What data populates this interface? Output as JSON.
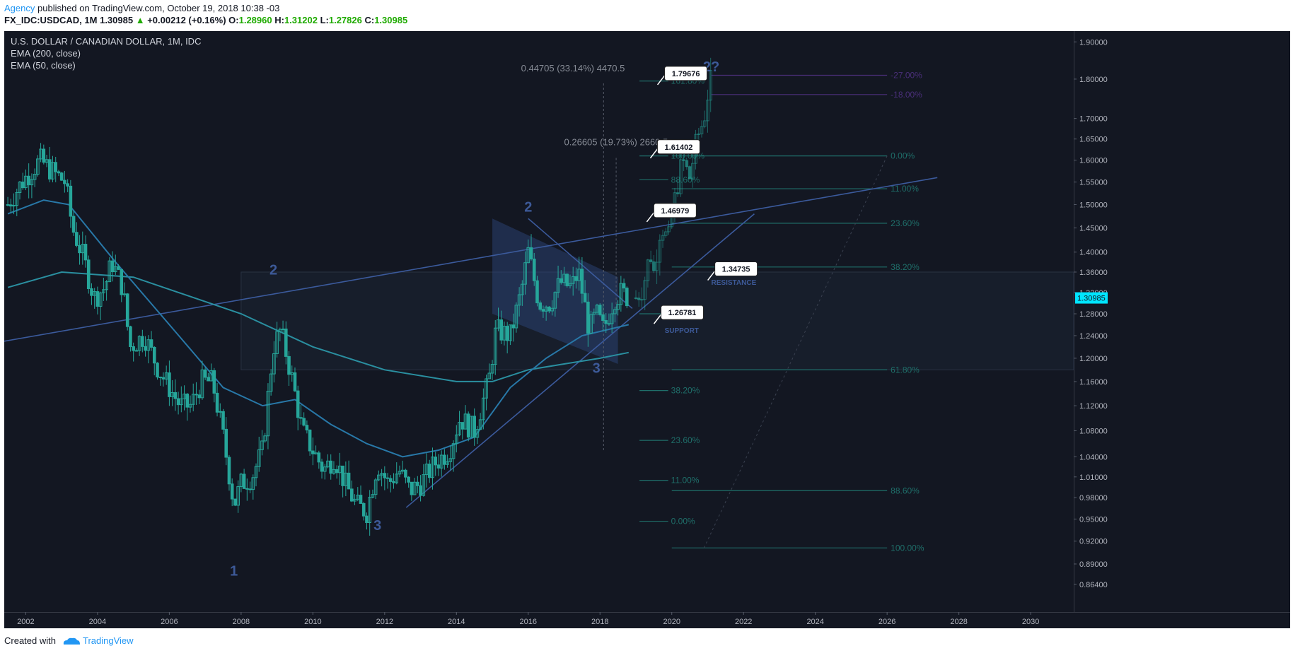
{
  "header": {
    "author": "Agency",
    "published": "published on TradingView.com, October 19, 2018 10:38 -03",
    "symbol": "FX_IDC:USDCAD, 1M",
    "last": "1.30985",
    "change": "+0.00212 (+0.16%)",
    "open_label": "O:",
    "open": "1.28960",
    "high_label": "H:",
    "high": "1.31202",
    "low_label": "L:",
    "low": "1.27826",
    "close_label": "C:",
    "close": "1.30985"
  },
  "legend": {
    "title": "U.S. DOLLAR / CANADIAN DOLLAR, 1M, IDC",
    "ema200": "EMA (200, close)",
    "ema50": "EMA (50, close)"
  },
  "footer": {
    "created": "Created with",
    "brand": "TradingView",
    "logo_icon": "tradingview-cloud-icon"
  },
  "colors": {
    "background": "#131722",
    "candle": "#26a69a",
    "ema": "#2a8fa0",
    "trendline": "#3b5a9c",
    "fib": "#1f6f6a",
    "fib_purple": "#4a2f7a",
    "price_tag": "#00e5ff",
    "annotation": "#3d5a99"
  },
  "chart_data": {
    "type": "candlestick",
    "title": "U.S. DOLLAR / CANADIAN DOLLAR, 1M, IDC",
    "x_axis": {
      "type": "time",
      "range": [
        2001.4,
        2031.2
      ],
      "ticks": [
        "2002",
        "2004",
        "2006",
        "2008",
        "2010",
        "2012",
        "2014",
        "2016",
        "2018",
        "2020",
        "2022",
        "2024",
        "2026",
        "2028",
        "2030"
      ]
    },
    "y_axis": {
      "scale": "log",
      "range": [
        0.83,
        1.93
      ],
      "ticks": [
        "1.90000",
        "1.80000",
        "1.70000",
        "1.65000",
        "1.60000",
        "1.55000",
        "1.50000",
        "1.45000",
        "1.40000",
        "1.36000",
        "1.32000",
        "1.28000",
        "1.24000",
        "1.20000",
        "1.16000",
        "1.12000",
        "1.08000",
        "1.04000",
        "1.01000",
        "0.98000",
        "0.95000",
        "0.92000",
        "0.89000",
        "0.86400"
      ],
      "last_price_tag": "1.30985"
    },
    "price_path": [
      [
        2001.5,
        1.5
      ],
      [
        2001.9,
        1.55
      ],
      [
        2002.1,
        1.57
      ],
      [
        2002.4,
        1.6
      ],
      [
        2002.8,
        1.57
      ],
      [
        2003.1,
        1.55
      ],
      [
        2003.3,
        1.45
      ],
      [
        2003.6,
        1.39
      ],
      [
        2003.9,
        1.31
      ],
      [
        2004.2,
        1.33
      ],
      [
        2004.4,
        1.38
      ],
      [
        2004.7,
        1.33
      ],
      [
        2004.9,
        1.22
      ],
      [
        2005.3,
        1.24
      ],
      [
        2005.7,
        1.18
      ],
      [
        2006.0,
        1.15
      ],
      [
        2006.3,
        1.12
      ],
      [
        2006.6,
        1.12
      ],
      [
        2006.9,
        1.16
      ],
      [
        2007.2,
        1.16
      ],
      [
        2007.5,
        1.07
      ],
      [
        2007.8,
        0.97
      ],
      [
        2008.0,
        1.0
      ],
      [
        2008.3,
        1.01
      ],
      [
        2008.6,
        1.05
      ],
      [
        2008.9,
        1.22
      ],
      [
        2009.1,
        1.25
      ],
      [
        2009.4,
        1.17
      ],
      [
        2009.7,
        1.08
      ],
      [
        2010.0,
        1.05
      ],
      [
        2010.3,
        1.02
      ],
      [
        2010.6,
        1.04
      ],
      [
        2010.9,
        1.0
      ],
      [
        2011.2,
        0.97
      ],
      [
        2011.5,
        0.96
      ],
      [
        2011.8,
        1.03
      ],
      [
        2012.1,
        1.0
      ],
      [
        2012.4,
        1.02
      ],
      [
        2012.7,
        0.99
      ],
      [
        2013.0,
        1.0
      ],
      [
        2013.4,
        1.03
      ],
      [
        2013.8,
        1.05
      ],
      [
        2014.1,
        1.1
      ],
      [
        2014.5,
        1.08
      ],
      [
        2014.9,
        1.16
      ],
      [
        2015.1,
        1.25
      ],
      [
        2015.5,
        1.24
      ],
      [
        2015.8,
        1.32
      ],
      [
        2016.0,
        1.4
      ],
      [
        2016.3,
        1.3
      ],
      [
        2016.6,
        1.3
      ],
      [
        2016.9,
        1.34
      ],
      [
        2017.2,
        1.33
      ],
      [
        2017.4,
        1.36
      ],
      [
        2017.7,
        1.25
      ],
      [
        2017.9,
        1.28
      ],
      [
        2018.1,
        1.25
      ],
      [
        2018.4,
        1.31
      ],
      [
        2018.6,
        1.32
      ],
      [
        2018.8,
        1.30985
      ]
    ],
    "projection_path": [
      [
        2019.0,
        1.31
      ],
      [
        2019.2,
        1.33
      ],
      [
        2019.4,
        1.4
      ],
      [
        2019.5,
        1.36
      ],
      [
        2019.7,
        1.46
      ],
      [
        2019.9,
        1.42
      ],
      [
        2020.1,
        1.52
      ],
      [
        2020.3,
        1.6
      ],
      [
        2020.5,
        1.56
      ],
      [
        2020.7,
        1.65
      ],
      [
        2020.9,
        1.7
      ],
      [
        2021.0,
        1.76
      ],
      [
        2021.1,
        1.8
      ]
    ],
    "ema200": [
      [
        2001.5,
        1.33
      ],
      [
        2003,
        1.36
      ],
      [
        2005,
        1.35
      ],
      [
        2008,
        1.28
      ],
      [
        2010,
        1.22
      ],
      [
        2012,
        1.18
      ],
      [
        2014,
        1.16
      ],
      [
        2015,
        1.16
      ],
      [
        2016,
        1.18
      ],
      [
        2017,
        1.19
      ],
      [
        2018,
        1.2
      ],
      [
        2018.8,
        1.21
      ]
    ],
    "ema50": [
      [
        2001.5,
        1.48
      ],
      [
        2002.5,
        1.51
      ],
      [
        2003.2,
        1.5
      ],
      [
        2004.5,
        1.38
      ],
      [
        2006,
        1.26
      ],
      [
        2007.5,
        1.15
      ],
      [
        2008.6,
        1.12
      ],
      [
        2009.5,
        1.13
      ],
      [
        2010.5,
        1.09
      ],
      [
        2011.5,
        1.06
      ],
      [
        2012.5,
        1.04
      ],
      [
        2013.5,
        1.05
      ],
      [
        2014.5,
        1.07
      ],
      [
        2015.5,
        1.15
      ],
      [
        2016.5,
        1.2
      ],
      [
        2017.5,
        1.24
      ],
      [
        2018.8,
        1.26
      ]
    ],
    "trendlines": [
      {
        "from": [
          2001.4,
          1.23
        ],
        "to": [
          2027.4,
          1.56
        ]
      },
      {
        "from": [
          2012.6,
          0.966
        ],
        "to": [
          2022.3,
          1.48
        ]
      },
      {
        "from": [
          2016.0,
          1.47
        ],
        "to": [
          2018.9,
          1.29
        ]
      }
    ],
    "wave_labels": [
      {
        "text": "1",
        "x": 2007.8,
        "y": 0.875
      },
      {
        "text": "2",
        "x": 2008.9,
        "y": 1.355
      },
      {
        "text": "3",
        "x": 2011.8,
        "y": 0.935
      },
      {
        "text": "2",
        "x": 2016.0,
        "y": 1.485
      },
      {
        "text": "3",
        "x": 2017.9,
        "y": 1.175
      },
      {
        "text": "2?",
        "x": 2021.1,
        "y": 1.82
      }
    ],
    "fib_retracement_upper": [
      {
        "level": "0.00%",
        "y": 1.61
      },
      {
        "level": "11.00%",
        "y": 1.535
      },
      {
        "level": "23.60%",
        "y": 1.46
      },
      {
        "level": "38.20%",
        "y": 1.37
      },
      {
        "level": "61.80%",
        "y": 1.18
      },
      {
        "level": "88.60%",
        "y": 0.99
      },
      {
        "level": "100.00%",
        "y": 0.911
      }
    ],
    "fib_purple": [
      {
        "level": "-27.00%",
        "y": 1.81
      },
      {
        "level": "-18.00%",
        "y": 1.76
      }
    ],
    "fib_extension_lower": [
      {
        "level": "161.80%",
        "y": 1.795
      },
      {
        "level": "100.00%",
        "y": 1.61
      },
      {
        "level": "88.60%",
        "y": 1.555
      },
      {
        "level": "61.80%",
        "y": 1.28
      },
      {
        "level": "38.20%",
        "y": 1.145
      },
      {
        "level": "23.60%",
        "y": 1.065
      },
      {
        "level": "11.00%",
        "y": 1.005
      },
      {
        "level": "0.00%",
        "y": 0.947
      }
    ],
    "measure_labels": [
      {
        "text": "0.44705 (33.14%) 4470.5",
        "x": 2015.8,
        "y": 1.82
      },
      {
        "text": "0.26605 (19.73%) 2660.5",
        "x": 2017.0,
        "y": 1.635
      }
    ],
    "callouts": [
      {
        "text": "1.79676",
        "x": 2019.8,
        "y": 1.8
      },
      {
        "text": "1.61402",
        "x": 2019.6,
        "y": 1.618
      },
      {
        "text": "1.46979",
        "x": 2019.5,
        "y": 1.475
      },
      {
        "text": "1.34735",
        "x": 2021.2,
        "y": 1.355
      },
      {
        "text": "1.26781",
        "x": 2019.7,
        "y": 1.272
      }
    ],
    "zone_labels": [
      {
        "text": "RESISTANCE",
        "x": 2021.1,
        "y": 1.335
      },
      {
        "text": "SUPPORT",
        "x": 2019.8,
        "y": 1.245
      }
    ],
    "channel": {
      "x1": 2015.0,
      "x2": 2018.5,
      "top": [
        1.47,
        1.35
      ],
      "bottom": [
        1.28,
        1.19
      ]
    },
    "range_box": {
      "x1": 2008.0,
      "x2": 2032.0,
      "y_top": 1.36,
      "y_bottom": 1.18
    }
  }
}
